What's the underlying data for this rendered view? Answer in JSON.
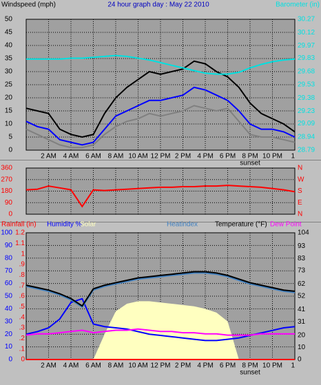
{
  "chart_data": [
    {
      "type": "line",
      "titles": [
        {
          "text": "Windspeed (mph)",
          "color": "#000000"
        },
        {
          "text": "24 hour graph day : May 22 2010",
          "color": "#0000c0"
        },
        {
          "text": "Barometer (in)",
          "color": "#00e0e0"
        }
      ],
      "x": [
        0,
        1,
        2,
        3,
        4,
        5,
        6,
        7,
        8,
        9,
        10,
        11,
        12,
        13,
        14,
        15,
        16,
        17,
        18,
        19,
        20,
        21,
        22,
        23,
        24
      ],
      "xlim": [
        0,
        24
      ],
      "xticks": [
        {
          "value": 2,
          "label": "2 AM"
        },
        {
          "value": 4,
          "label": "4 AM"
        },
        {
          "value": 6,
          "label": "6 AM"
        },
        {
          "value": 8,
          "label": "8 AM"
        },
        {
          "value": 10,
          "label": "10 AM"
        },
        {
          "value": 12,
          "label": "12 PM"
        },
        {
          "value": 14,
          "label": "2 PM"
        },
        {
          "value": 16,
          "label": "4 PM"
        },
        {
          "value": 18,
          "label": "6 PM"
        },
        {
          "value": 20,
          "label": "8 PM"
        },
        {
          "value": 22,
          "label": "10 PM"
        },
        {
          "value": 24,
          "label": "1"
        }
      ],
      "annotations": [
        {
          "text": "sunset",
          "x": 20
        }
      ],
      "ylim": [
        0,
        50
      ],
      "yticks": [
        0,
        5,
        10,
        15,
        20,
        25,
        30,
        35,
        40,
        45,
        50
      ],
      "ytick_color": "#000000",
      "y2lim": [
        28.79,
        30.27
      ],
      "y2ticks": [
        28.79,
        28.94,
        29.09,
        29.23,
        29.38,
        29.53,
        29.68,
        29.83,
        29.97,
        30.12,
        30.27
      ],
      "y2tick_color": "#00e0e0",
      "grid": true,
      "series": [
        {
          "color": "#808080",
          "values": [
            8,
            6,
            4,
            2,
            1,
            1,
            2,
            6,
            9,
            11,
            12,
            14,
            13,
            14,
            15,
            17,
            16,
            15,
            16,
            11,
            6,
            5,
            5,
            4,
            3
          ]
        },
        {
          "color": "#000000",
          "values": [
            16,
            15,
            14,
            8,
            6,
            5,
            6,
            14,
            20,
            24,
            27,
            30,
            29,
            30,
            31,
            34,
            33,
            30,
            28,
            24,
            18,
            14,
            12,
            10,
            7
          ]
        },
        {
          "color": "#0000ff",
          "values": [
            11,
            9,
            8,
            4,
            3,
            2,
            3,
            8,
            13,
            15,
            17,
            19,
            19,
            20,
            21,
            24,
            23,
            21,
            19,
            15,
            10,
            8,
            8,
            7,
            5
          ]
        },
        {
          "color": "#00e0e0",
          "axis": "y2",
          "values": [
            29.82,
            29.82,
            29.82,
            29.82,
            29.83,
            29.83,
            29.84,
            29.85,
            29.86,
            29.85,
            29.83,
            29.81,
            29.78,
            29.75,
            29.72,
            29.69,
            29.66,
            29.65,
            29.65,
            29.67,
            29.72,
            29.76,
            29.79,
            29.81,
            29.82
          ]
        }
      ]
    },
    {
      "type": "line",
      "x": [
        0,
        1,
        2,
        3,
        4,
        5,
        6,
        7,
        8,
        9,
        10,
        11,
        12,
        13,
        14,
        15,
        16,
        17,
        18,
        19,
        20,
        21,
        22,
        23,
        24
      ],
      "xlim": [
        0,
        24
      ],
      "xticks": [
        2,
        4,
        6,
        8,
        10,
        12,
        14,
        16,
        18,
        20,
        22
      ],
      "ylim": [
        0,
        360
      ],
      "yticks": [
        0,
        90,
        180,
        270,
        360
      ],
      "ytick_color": "#ff0000",
      "y2lim": [
        0,
        360
      ],
      "y2ticks": [
        {
          "value": 0,
          "label": "N"
        },
        {
          "value": 90,
          "label": "E"
        },
        {
          "value": 180,
          "label": "S"
        },
        {
          "value": 270,
          "label": "W"
        },
        {
          "value": 360,
          "label": "N"
        }
      ],
      "y2tick_color": "#ff0000",
      "grid": true,
      "series": [
        {
          "color": "#ff0000",
          "values": [
            190,
            195,
            220,
            205,
            190,
            60,
            190,
            185,
            190,
            195,
            200,
            205,
            210,
            210,
            215,
            215,
            220,
            220,
            225,
            220,
            215,
            210,
            200,
            190,
            175
          ]
        }
      ]
    },
    {
      "type": "line",
      "titles": [
        {
          "text": "Rainfall (in)",
          "color": "#ff0000"
        },
        {
          "text": "Humidity %",
          "color": "#0000ff"
        },
        {
          "text": "Solar",
          "color": "#ffffc0"
        },
        {
          "text": "Heatindex",
          "color": "#4080c0"
        },
        {
          "text": "Temperature (°F)",
          "color": "#000000"
        },
        {
          "text": "Dew Point",
          "color": "#ff00ff"
        }
      ],
      "x": [
        0,
        1,
        2,
        3,
        4,
        5,
        6,
        7,
        8,
        9,
        10,
        11,
        12,
        13,
        14,
        15,
        16,
        17,
        18,
        19,
        20,
        21,
        22,
        23,
        24
      ],
      "xlim": [
        0,
        24
      ],
      "xticks": [
        {
          "value": 2,
          "label": "2 AM"
        },
        {
          "value": 4,
          "label": "4 AM"
        },
        {
          "value": 6,
          "label": "6 AM"
        },
        {
          "value": 8,
          "label": "8 AM"
        },
        {
          "value": 10,
          "label": "10 AM"
        },
        {
          "value": 12,
          "label": "12 PM"
        },
        {
          "value": 14,
          "label": "2 PM"
        },
        {
          "value": 16,
          "label": "4 PM"
        },
        {
          "value": 18,
          "label": "6 PM"
        },
        {
          "value": 20,
          "label": "8 PM"
        },
        {
          "value": 22,
          "label": "10 PM"
        },
        {
          "value": 24,
          "label": "1"
        }
      ],
      "annotations": [
        {
          "text": "sunset",
          "x": 20
        }
      ],
      "ylim": [
        0,
        100
      ],
      "yticks": [
        0,
        10,
        20,
        30,
        40,
        50,
        60,
        70,
        80,
        90,
        100
      ],
      "ytick_color": "#0000ff",
      "y2lim": [
        0,
        104
      ],
      "y2ticks": [
        0,
        10,
        20,
        31,
        41,
        52,
        62,
        73,
        83,
        93,
        104
      ],
      "y2tick_color": "#000000",
      "y3lim": [
        0,
        1.2
      ],
      "y3ticks": [
        0,
        {
          "value": 0.1,
          "label": ".1"
        },
        {
          "value": 0.2,
          "label": ".2"
        },
        {
          "value": 0.3,
          "label": ".3"
        },
        {
          "value": 0.4,
          "label": ".4"
        },
        {
          "value": 0.5,
          "label": ".5"
        },
        {
          "value": 0.6,
          "label": ".6"
        },
        {
          "value": 0.7,
          "label": ".7"
        },
        {
          "value": 0.8,
          "label": ".8"
        },
        {
          "value": 0.9,
          "label": ".9"
        },
        1,
        {
          "value": 1.1,
          "label": "1.1"
        },
        {
          "value": 1.2,
          "label": "1.2"
        }
      ],
      "y3tick_color": "#ff0000",
      "grid": true,
      "series": [
        {
          "name": "Solar",
          "color": "#ffffc0",
          "fill": true,
          "values": [
            0,
            0,
            0,
            0,
            0,
            0,
            0,
            20,
            38,
            44,
            46,
            46,
            45,
            44,
            43,
            42,
            40,
            37,
            30,
            0,
            0,
            0,
            0,
            0,
            0
          ]
        },
        {
          "name": "Rainfall (in)",
          "color": "#ff0000",
          "axis": "y3",
          "values": [
            0,
            0,
            0,
            0,
            0,
            0,
            0,
            0,
            0,
            0,
            0,
            0,
            0,
            0,
            0,
            0,
            0,
            0,
            0,
            0,
            0,
            0,
            0,
            0,
            0
          ]
        },
        {
          "name": "Humidity %",
          "color": "#0000ff",
          "values": [
            20,
            22,
            25,
            32,
            45,
            48,
            28,
            26,
            25,
            24,
            22,
            20,
            19,
            18,
            17,
            16,
            15,
            15,
            16,
            17,
            19,
            21,
            23,
            25,
            26
          ]
        },
        {
          "name": "Dew Point",
          "color": "#ff00ff",
          "axis": "y2",
          "values": [
            20,
            21,
            21,
            22,
            23,
            24,
            22,
            23,
            24,
            24,
            25,
            24,
            23,
            23,
            22,
            22,
            21,
            21,
            20,
            20,
            20,
            21,
            21,
            21,
            21
          ]
        },
        {
          "name": "Heatindex",
          "color": "#4080c0",
          "axis": "y2",
          "values": [
            60,
            58,
            56,
            53,
            49,
            43,
            57,
            60,
            62,
            64,
            66,
            67,
            68,
            69,
            70,
            71,
            71,
            70,
            68,
            65,
            62,
            60,
            58,
            56,
            55
          ]
        },
        {
          "name": "Temperature (°F)",
          "color": "#000000",
          "axis": "y2",
          "values": [
            61,
            59,
            57,
            54,
            50,
            44,
            58,
            61,
            63,
            65,
            67,
            68,
            69,
            70,
            71,
            72,
            72,
            71,
            69,
            66,
            63,
            61,
            59,
            57,
            56
          ]
        }
      ]
    }
  ]
}
